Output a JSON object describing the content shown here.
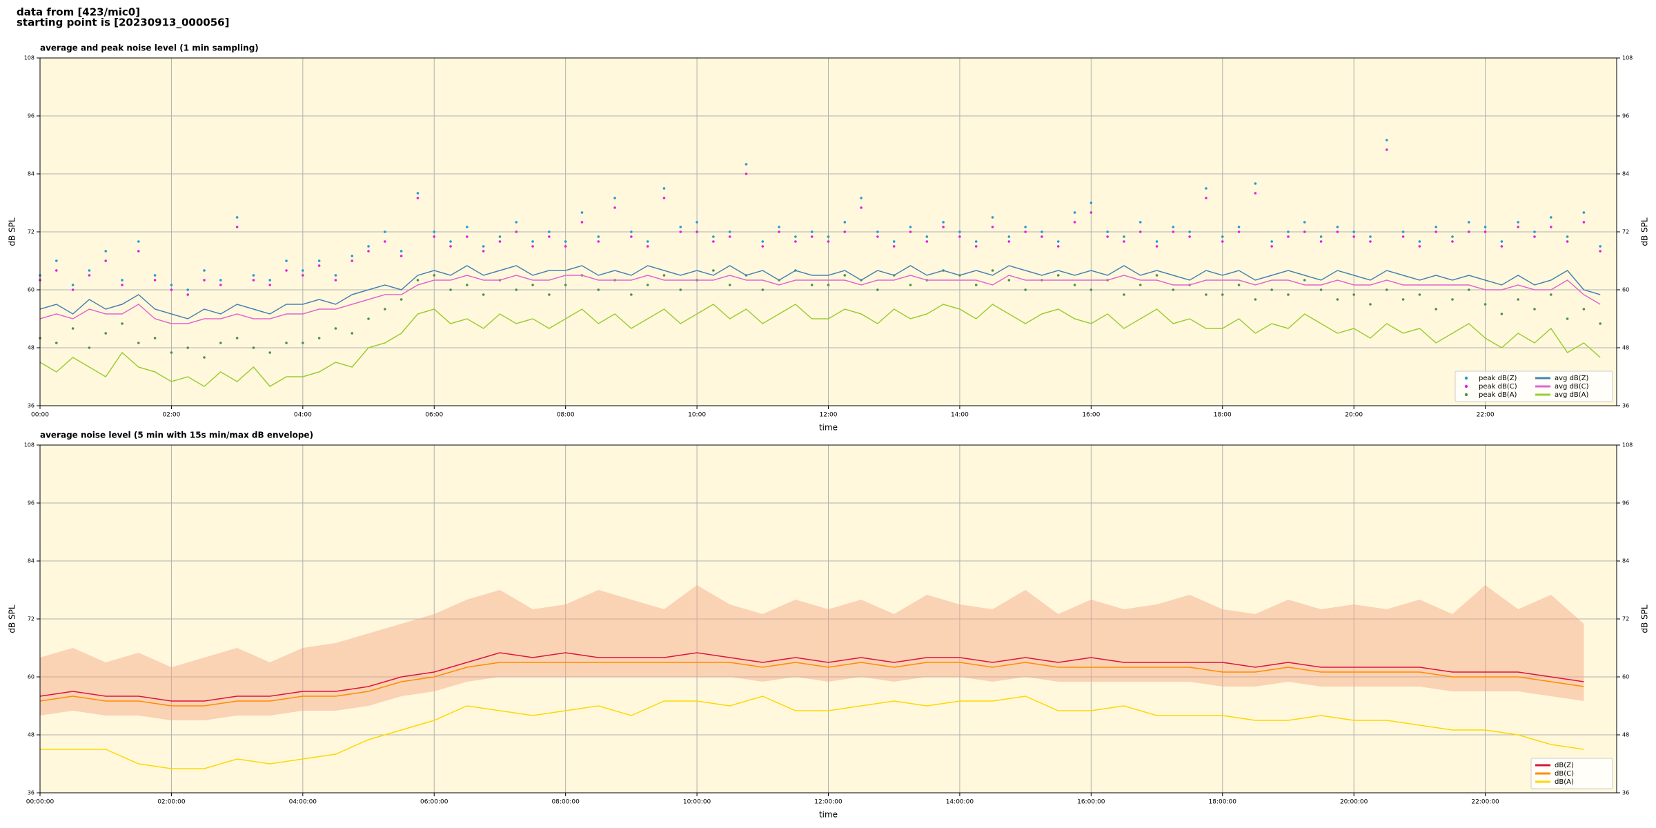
{
  "header": {
    "lines": [
      "data from [423/mic0]",
      "starting point is [20230913_000056]"
    ]
  },
  "chart_data": [
    {
      "type": "line",
      "title": "average and peak noise level (1 min sampling)",
      "x_label": "time",
      "y_label": "dB SPL",
      "xlim": [
        0,
        24
      ],
      "ylim": [
        36,
        108
      ],
      "yticks": [
        36,
        48,
        60,
        72,
        84,
        96,
        108
      ],
      "xticks": [
        {
          "value": 0,
          "label": "00:00"
        },
        {
          "value": 2,
          "label": "02:00"
        },
        {
          "value": 4,
          "label": "04:00"
        },
        {
          "value": 6,
          "label": "06:00"
        },
        {
          "value": 8,
          "label": "08:00"
        },
        {
          "value": 10,
          "label": "10:00"
        },
        {
          "value": 12,
          "label": "12:00"
        },
        {
          "value": 14,
          "label": "14:00"
        },
        {
          "value": 16,
          "label": "16:00"
        },
        {
          "value": 18,
          "label": "18:00"
        },
        {
          "value": 20,
          "label": "20:00"
        },
        {
          "value": 22,
          "label": "22:00"
        }
      ],
      "grid": true,
      "legend": "lower right",
      "legend_columns": 2,
      "x": [
        0,
        0.25,
        0.5,
        0.75,
        1,
        1.25,
        1.5,
        1.75,
        2,
        2.25,
        2.5,
        2.75,
        3,
        3.25,
        3.5,
        3.75,
        4,
        4.25,
        4.5,
        4.75,
        5,
        5.25,
        5.5,
        5.75,
        6,
        6.25,
        6.5,
        6.75,
        7,
        7.25,
        7.5,
        7.75,
        8,
        8.25,
        8.5,
        8.75,
        9,
        9.25,
        9.5,
        9.75,
        10,
        10.25,
        10.5,
        10.75,
        11,
        11.25,
        11.5,
        11.75,
        12,
        12.25,
        12.5,
        12.75,
        13,
        13.25,
        13.5,
        13.75,
        14,
        14.25,
        14.5,
        14.75,
        15,
        15.25,
        15.5,
        15.75,
        16,
        16.25,
        16.5,
        16.75,
        17,
        17.25,
        17.5,
        17.75,
        18,
        18.25,
        18.5,
        18.75,
        19,
        19.25,
        19.5,
        19.75,
        20,
        20.25,
        20.5,
        20.75,
        21,
        21.25,
        21.5,
        21.75,
        22,
        22.25,
        22.5,
        22.75,
        23,
        23.25,
        23.5,
        23.75
      ],
      "series": [
        {
          "name": "peak dB(Z)",
          "style": "scatter",
          "color": "#1f9bd6",
          "values": [
            63,
            66,
            61,
            64,
            68,
            62,
            70,
            63,
            61,
            60,
            64,
            62,
            75,
            63,
            62,
            66,
            64,
            66,
            63,
            67,
            69,
            72,
            68,
            80,
            72,
            70,
            73,
            69,
            71,
            74,
            70,
            72,
            70,
            76,
            71,
            79,
            72,
            70,
            81,
            73,
            74,
            71,
            72,
            86,
            70,
            73,
            71,
            72,
            71,
            74,
            79,
            72,
            70,
            73,
            71,
            74,
            72,
            70,
            75,
            71,
            73,
            72,
            70,
            76,
            78,
            72,
            71,
            74,
            70,
            73,
            72,
            81,
            71,
            73,
            82,
            70,
            72,
            74,
            71,
            73,
            72,
            71,
            91,
            72,
            70,
            73,
            71,
            74,
            73,
            70,
            74,
            72,
            75,
            71,
            76,
            69
          ]
        },
        {
          "name": "peak dB(C)",
          "style": "scatter",
          "color": "#e020e0",
          "values": [
            62,
            64,
            60,
            63,
            66,
            61,
            68,
            62,
            60,
            59,
            62,
            61,
            73,
            62,
            61,
            64,
            63,
            65,
            62,
            66,
            68,
            70,
            67,
            79,
            71,
            69,
            71,
            68,
            70,
            72,
            69,
            71,
            69,
            74,
            70,
            77,
            71,
            69,
            79,
            72,
            72,
            70,
            71,
            84,
            69,
            72,
            70,
            71,
            70,
            72,
            77,
            71,
            69,
            72,
            70,
            73,
            71,
            69,
            73,
            70,
            72,
            71,
            69,
            74,
            76,
            71,
            70,
            72,
            69,
            72,
            71,
            79,
            70,
            72,
            80,
            69,
            71,
            72,
            70,
            72,
            71,
            70,
            89,
            71,
            69,
            72,
            70,
            72,
            72,
            69,
            73,
            71,
            73,
            70,
            74,
            68
          ]
        },
        {
          "name": "peak dB(A)",
          "style": "scatter",
          "color": "#4d8f4d",
          "values": [
            50,
            49,
            52,
            48,
            51,
            53,
            49,
            50,
            47,
            48,
            46,
            49,
            50,
            48,
            47,
            49,
            49,
            50,
            52,
            51,
            54,
            56,
            58,
            62,
            63,
            60,
            61,
            59,
            62,
            60,
            61,
            59,
            61,
            63,
            60,
            62,
            59,
            61,
            63,
            60,
            62,
            64,
            61,
            63,
            60,
            62,
            64,
            61,
            61,
            63,
            62,
            60,
            63,
            61,
            62,
            64,
            63,
            61,
            64,
            62,
            60,
            62,
            63,
            61,
            60,
            62,
            59,
            61,
            63,
            60,
            61,
            59,
            59,
            61,
            58,
            60,
            59,
            62,
            60,
            58,
            59,
            57,
            60,
            58,
            59,
            56,
            58,
            60,
            57,
            55,
            58,
            56,
            59,
            54,
            56,
            53
          ]
        },
        {
          "name": "avg dB(Z)",
          "style": "line",
          "color": "#4682b4",
          "values": [
            56,
            57,
            55,
            58,
            56,
            57,
            59,
            56,
            55,
            54,
            56,
            55,
            57,
            56,
            55,
            57,
            57,
            58,
            57,
            59,
            60,
            61,
            60,
            63,
            64,
            63,
            65,
            63,
            64,
            65,
            63,
            64,
            64,
            65,
            63,
            64,
            63,
            65,
            64,
            63,
            64,
            63,
            65,
            63,
            64,
            62,
            64,
            63,
            63,
            64,
            62,
            64,
            63,
            65,
            63,
            64,
            63,
            64,
            63,
            65,
            64,
            63,
            64,
            63,
            64,
            63,
            65,
            63,
            64,
            63,
            62,
            64,
            63,
            64,
            62,
            63,
            64,
            63,
            62,
            64,
            63,
            62,
            64,
            63,
            62,
            63,
            62,
            63,
            62,
            61,
            63,
            61,
            62,
            64,
            60,
            59
          ]
        },
        {
          "name": "avg dB(C)",
          "style": "line",
          "color": "#e066d0",
          "values": [
            54,
            55,
            54,
            56,
            55,
            55,
            57,
            54,
            53,
            53,
            54,
            54,
            55,
            54,
            54,
            55,
            55,
            56,
            56,
            57,
            58,
            59,
            59,
            61,
            62,
            62,
            63,
            62,
            62,
            63,
            62,
            62,
            63,
            63,
            62,
            62,
            62,
            63,
            62,
            62,
            62,
            62,
            63,
            62,
            62,
            61,
            62,
            62,
            62,
            62,
            61,
            62,
            62,
            63,
            62,
            62,
            62,
            62,
            61,
            63,
            62,
            62,
            62,
            62,
            62,
            62,
            63,
            62,
            62,
            61,
            61,
            62,
            62,
            62,
            61,
            62,
            62,
            61,
            61,
            62,
            61,
            61,
            62,
            61,
            61,
            61,
            61,
            61,
            60,
            60,
            61,
            60,
            60,
            62,
            59,
            57
          ]
        },
        {
          "name": "avg dB(A)",
          "style": "line",
          "color": "#9acd32",
          "values": [
            45,
            43,
            46,
            44,
            42,
            47,
            44,
            43,
            41,
            42,
            40,
            43,
            41,
            44,
            40,
            42,
            42,
            43,
            45,
            44,
            48,
            49,
            51,
            55,
            56,
            53,
            54,
            52,
            55,
            53,
            54,
            52,
            54,
            56,
            53,
            55,
            52,
            54,
            56,
            53,
            55,
            57,
            54,
            56,
            53,
            55,
            57,
            54,
            54,
            56,
            55,
            53,
            56,
            54,
            55,
            57,
            56,
            54,
            57,
            55,
            53,
            55,
            56,
            54,
            53,
            55,
            52,
            54,
            56,
            53,
            54,
            52,
            52,
            54,
            51,
            53,
            52,
            55,
            53,
            51,
            52,
            50,
            53,
            51,
            52,
            49,
            51,
            53,
            50,
            48,
            51,
            49,
            52,
            47,
            49,
            46
          ]
        }
      ]
    },
    {
      "type": "line",
      "title": "average noise level (5 min with 15s min/max dB envelope)",
      "x_label": "time",
      "y_label": "dB SPL",
      "xlim": [
        0,
        24
      ],
      "ylim": [
        36,
        108
      ],
      "yticks": [
        36,
        48,
        60,
        72,
        84,
        96,
        108
      ],
      "xticks": [
        {
          "value": 0,
          "label": "00:00:00"
        },
        {
          "value": 2,
          "label": "02:00:00"
        },
        {
          "value": 4,
          "label": "04:00:00"
        },
        {
          "value": 6,
          "label": "06:00:00"
        },
        {
          "value": 8,
          "label": "08:00:00"
        },
        {
          "value": 10,
          "label": "10:00:00"
        },
        {
          "value": 12,
          "label": "12:00:00"
        },
        {
          "value": 14,
          "label": "14:00:00"
        },
        {
          "value": 16,
          "label": "16:00:00"
        },
        {
          "value": 18,
          "label": "18:00:00"
        },
        {
          "value": 20,
          "label": "20:00:00"
        },
        {
          "value": 22,
          "label": "22:00:00"
        }
      ],
      "grid": true,
      "legend": "lower right",
      "legend_columns": 1,
      "x": [
        0,
        0.5,
        1,
        1.5,
        2,
        2.5,
        3,
        3.5,
        4,
        4.5,
        5,
        5.5,
        6,
        6.5,
        7,
        7.5,
        8,
        8.5,
        9,
        9.5,
        10,
        10.5,
        11,
        11.5,
        12,
        12.5,
        13,
        13.5,
        14,
        14.5,
        15,
        15.5,
        16,
        16.5,
        17,
        17.5,
        18,
        18.5,
        19,
        19.5,
        20,
        20.5,
        21,
        21.5,
        22,
        22.5,
        23,
        23.5
      ],
      "band": {
        "color": "#f4a582",
        "low": [
          52,
          53,
          52,
          52,
          51,
          51,
          52,
          52,
          53,
          53,
          54,
          56,
          57,
          59,
          60,
          60,
          60,
          60,
          60,
          60,
          60,
          60,
          59,
          60,
          59,
          60,
          59,
          60,
          60,
          59,
          60,
          59,
          59,
          59,
          59,
          59,
          58,
          58,
          59,
          58,
          58,
          58,
          58,
          57,
          57,
          57,
          56,
          55
        ],
        "high": [
          64,
          66,
          63,
          65,
          62,
          64,
          66,
          63,
          66,
          67,
          69,
          71,
          73,
          76,
          78,
          74,
          75,
          78,
          76,
          74,
          79,
          75,
          73,
          76,
          74,
          76,
          73,
          77,
          75,
          74,
          78,
          73,
          76,
          74,
          75,
          77,
          74,
          73,
          76,
          74,
          75,
          74,
          76,
          73,
          79,
          74,
          77,
          71
        ]
      },
      "series": [
        {
          "name": "dB(Z)",
          "style": "line",
          "color": "#dc143c",
          "values": [
            56,
            57,
            56,
            56,
            55,
            55,
            56,
            56,
            57,
            57,
            58,
            60,
            61,
            63,
            65,
            64,
            65,
            64,
            64,
            64,
            65,
            64,
            63,
            64,
            63,
            64,
            63,
            64,
            64,
            63,
            64,
            63,
            64,
            63,
            63,
            63,
            63,
            62,
            63,
            62,
            62,
            62,
            62,
            61,
            61,
            61,
            60,
            59
          ]
        },
        {
          "name": "dB(C)",
          "style": "line",
          "color": "#ff8c00",
          "values": [
            55,
            56,
            55,
            55,
            54,
            54,
            55,
            55,
            56,
            56,
            57,
            59,
            60,
            62,
            63,
            63,
            63,
            63,
            63,
            63,
            63,
            63,
            62,
            63,
            62,
            63,
            62,
            63,
            63,
            62,
            63,
            62,
            62,
            62,
            62,
            62,
            61,
            61,
            62,
            61,
            61,
            61,
            61,
            60,
            60,
            60,
            59,
            58
          ]
        },
        {
          "name": "dB(A)",
          "style": "line",
          "color": "#ffd700",
          "values": [
            45,
            45,
            45,
            42,
            41,
            41,
            43,
            42,
            43,
            44,
            47,
            49,
            51,
            54,
            53,
            52,
            53,
            54,
            52,
            55,
            55,
            54,
            56,
            53,
            53,
            54,
            55,
            54,
            55,
            55,
            56,
            53,
            53,
            54,
            52,
            52,
            52,
            51,
            51,
            52,
            51,
            51,
            50,
            49,
            49,
            48,
            46,
            45
          ]
        }
      ]
    }
  ]
}
